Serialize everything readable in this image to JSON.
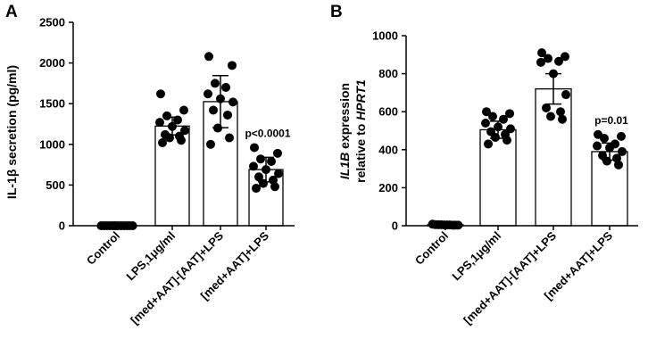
{
  "chart_data": [
    {
      "type": "bar",
      "panel_label": "A",
      "ylabel": "IL-1β secretion (pg/ml)",
      "ylabel_parts": [
        {
          "text": "IL-1β secretion (pg/ml)",
          "italic": false
        }
      ],
      "ylim": [
        0,
        2500
      ],
      "yticks": [
        0,
        500,
        1000,
        1500,
        2000,
        2500
      ],
      "categories": [
        "Control",
        "LPS,1μg/ml",
        "[med+AAT]-[AAT]+LPS",
        "[med+AAT]+LPS"
      ],
      "values": [
        0,
        1225,
        1525,
        690
      ],
      "errors": [
        0,
        110,
        320,
        150
      ],
      "points": [
        [
          0,
          0,
          0,
          0,
          0,
          0,
          0,
          0,
          0,
          0,
          0,
          0
        ],
        [
          1620,
          1420,
          1350,
          1300,
          1270,
          1220,
          1170,
          1120,
          1100,
          1080,
          1050,
          1020
        ],
        [
          2080,
          1970,
          1750,
          1700,
          1620,
          1560,
          1520,
          1420,
          1360,
          1200,
          1080,
          1000
        ],
        [
          960,
          890,
          820,
          790,
          730,
          690,
          640,
          600,
          560,
          520,
          480,
          460
        ]
      ],
      "annotations": [
        {
          "category": "[med+AAT]+LPS",
          "text": "p<0.0001"
        }
      ]
    },
    {
      "type": "bar",
      "panel_label": "B",
      "ylabel": "IL1B expression relative to HPRT1",
      "ylabel_parts": [
        {
          "text": "IL1B",
          "italic": true
        },
        {
          "text": " expression",
          "italic": false
        },
        {
          "text": "relative to ",
          "italic": false
        },
        {
          "text": "HPRT1",
          "italic": true
        }
      ],
      "ylim": [
        0,
        1000
      ],
      "yticks": [
        0,
        200,
        400,
        600,
        800,
        1000
      ],
      "categories": [
        "Control",
        "LPS,1μg/ml",
        "[med+AAT]-[AAT]+LPS",
        "[med+AAT]+LPS"
      ],
      "values": [
        5,
        505,
        720,
        390
      ],
      "errors": [
        0,
        45,
        80,
        45
      ],
      "points": [
        [
          8,
          6,
          5,
          5,
          4,
          4,
          4,
          3,
          3,
          3
        ],
        [
          600,
          590,
          575,
          560,
          540,
          520,
          510,
          495,
          480,
          465,
          450,
          430
        ],
        [
          910,
          890,
          880,
          865,
          860,
          800,
          690,
          620,
          600,
          575,
          560
        ],
        [
          480,
          470,
          460,
          430,
          420,
          410,
          390,
          370,
          355,
          340,
          320
        ]
      ],
      "annotations": [
        {
          "category": "[med+AAT]+LPS",
          "text": "p=0.01"
        }
      ]
    }
  ]
}
